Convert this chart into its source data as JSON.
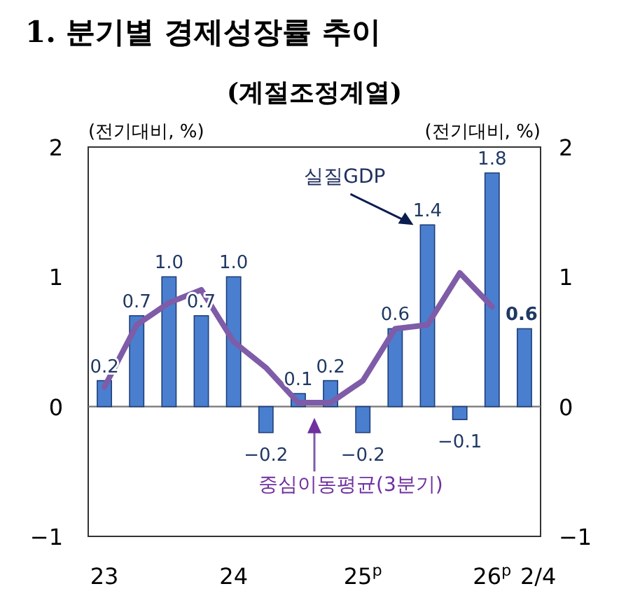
{
  "chart_data": {
    "type": "bar",
    "title": "1. 분기별 경제성장률 추이",
    "subtitle": "(계절조정계열)",
    "ylabel": "(전기대비, %)",
    "y2label": "(전기대비, %)",
    "categories": [
      "23",
      null,
      null,
      null,
      "24",
      null,
      null,
      null,
      "25$^{p}$",
      null,
      null,
      null,
      "26$^{p}$",
      "2/4"
    ],
    "series": [
      {
        "name": "실질GDP",
        "color": "#4a7fcf",
        "values": [
          0.2,
          0.7,
          1.0,
          0.7,
          1.0,
          -0.2,
          0.1,
          0.2,
          -0.2,
          0.6,
          1.4,
          -0.1,
          1.8,
          0.6
        ],
        "value_labels": [
          "0.2",
          "0.7",
          "1.0",
          "0.7",
          "1.0",
          "−0.2",
          "0.1",
          "0.2",
          "−0.2",
          "0.6",
          "1.4",
          "−0.1",
          "1.8",
          "0.6"
        ]
      },
      {
        "type": "line",
        "name": "중심이동평균(3분기)",
        "color": "#7e5ca8",
        "values": [
          0.15,
          0.63,
          0.8,
          0.9,
          0.5,
          0.3,
          0.03,
          0.03,
          0.2,
          0.6,
          0.63,
          1.03,
          0.77,
          null
        ]
      }
    ],
    "ylim": [
      -1,
      2
    ],
    "yticks": [
      -1,
      0,
      1,
      2
    ],
    "y2lim": [
      -1,
      2
    ],
    "y2ticks": [
      -1,
      0,
      1,
      2
    ],
    "marker": "none",
    "line_style": "solid"
  }
}
